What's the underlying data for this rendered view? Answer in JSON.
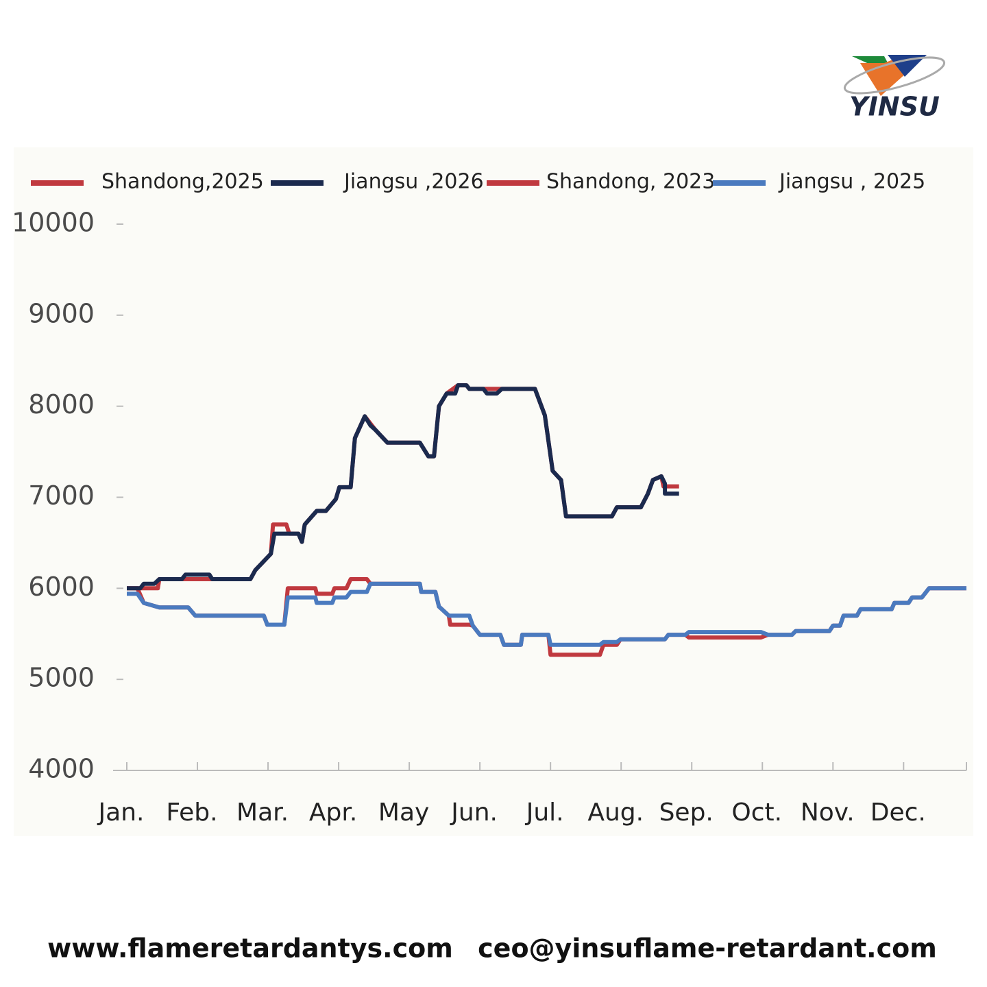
{
  "brand": "YINSU",
  "footer": {
    "website": "www.flameretardantys.com",
    "email": "ceo@yinsuflame-retardant.com"
  },
  "chart_data": {
    "type": "line",
    "xlim": [
      0,
      11.89
    ],
    "ylim": [
      4000,
      10000
    ],
    "yticks": [
      4000,
      5000,
      6000,
      7000,
      8000,
      9000,
      10000
    ],
    "xticks": [
      {
        "value": 0,
        "label": "Jan."
      },
      {
        "value": 1,
        "label": "Feb."
      },
      {
        "value": 2,
        "label": "Mar."
      },
      {
        "value": 3,
        "label": "Apr."
      },
      {
        "value": 4,
        "label": "May"
      },
      {
        "value": 5,
        "label": "Jun."
      },
      {
        "value": 6,
        "label": "Jul."
      },
      {
        "value": 7,
        "label": "Aug."
      },
      {
        "value": 8,
        "label": "Sep."
      },
      {
        "value": 9,
        "label": "Oct."
      },
      {
        "value": 10,
        "label": "Nov."
      },
      {
        "value": 11,
        "label": "Dec."
      }
    ],
    "legend": "top",
    "series": [
      {
        "name": "Shandong,2025",
        "color": "#c0393f",
        "x": [
          0,
          0.44,
          0.46,
          0.87,
          1.12,
          1.21,
          1.75,
          1.82,
          2.04,
          2.07,
          2.26,
          2.3,
          2.43,
          2.48,
          2.52,
          2.69,
          2.82,
          2.96,
          3.01,
          3.17,
          3.23,
          3.37,
          3.52,
          3.69,
          4.15,
          4.27,
          4.35,
          4.42,
          4.53,
          4.69,
          4.81,
          4.85,
          5.78,
          5.92,
          6.03,
          6.15,
          6.22,
          6.87,
          6.94,
          7.28,
          7.38,
          7.45,
          7.57,
          7.6,
          7.82
        ],
        "values": [
          6000,
          6000,
          6100,
          6100,
          6100,
          6100,
          6100,
          6200,
          6380,
          6700,
          6700,
          6600,
          6600,
          6510,
          6700,
          6850,
          6850,
          6980,
          7110,
          7110,
          7650,
          7890,
          7740,
          7600,
          7600,
          7450,
          7450,
          8000,
          8140,
          8230,
          8230,
          8190,
          8190,
          7900,
          7290,
          7190,
          6790,
          6790,
          6890,
          6890,
          7040,
          7190,
          7230,
          7120,
          7120
        ]
      },
      {
        "name": "Jiangsu ,2026",
        "color": "#1b2a4e",
        "x": [
          0,
          0.19,
          0.24,
          0.39,
          0.46,
          0.78,
          0.83,
          1.17,
          1.21,
          1.75,
          1.82,
          2.04,
          2.09,
          2.43,
          2.48,
          2.52,
          2.69,
          2.82,
          2.96,
          3.01,
          3.17,
          3.23,
          3.37,
          3.45,
          3.52,
          3.69,
          4.15,
          4.27,
          4.35,
          4.42,
          4.53,
          4.65,
          4.69,
          4.81,
          4.85,
          5.05,
          5.1,
          5.24,
          5.31,
          5.78,
          5.92,
          6.03,
          6.15,
          6.22,
          6.87,
          6.94,
          7.28,
          7.38,
          7.45,
          7.57,
          7.62,
          7.62,
          7.82
        ],
        "values": [
          6000,
          6000,
          6050,
          6050,
          6100,
          6100,
          6150,
          6150,
          6100,
          6100,
          6200,
          6380,
          6600,
          6600,
          6510,
          6700,
          6850,
          6850,
          6980,
          7110,
          7110,
          7650,
          7890,
          7790,
          7740,
          7600,
          7600,
          7450,
          7450,
          8000,
          8140,
          8140,
          8230,
          8230,
          8190,
          8190,
          8140,
          8140,
          8190,
          8190,
          7900,
          7290,
          7190,
          6790,
          6790,
          6890,
          6890,
          7040,
          7190,
          7230,
          7150,
          7040,
          7040
        ]
      },
      {
        "name": "Shandong, 2023",
        "color": "#c0393f",
        "x": [
          0,
          0.15,
          0.24,
          0.46,
          0.87,
          0.97,
          1.94,
          1.99,
          2.23,
          2.28,
          2.67,
          2.69,
          2.91,
          2.94,
          3.11,
          3.17,
          3.4,
          3.45,
          3.5,
          4.15,
          4.17,
          4.37,
          4.42,
          4.56,
          4.58,
          4.85,
          4.9,
          5.0,
          5.29,
          5.34,
          5.58,
          5.6,
          5.97,
          6.0,
          6.7,
          6.75,
          6.94,
          6.99,
          7.62,
          7.67,
          7.91,
          7.96,
          8.98,
          9.08,
          9.42,
          9.47,
          9.95,
          10.0,
          10.1,
          10.15,
          10.34,
          10.39,
          10.83,
          10.87,
          11.07,
          11.12,
          11.26,
          11.36,
          11.89
        ],
        "values": [
          6000,
          6000,
          5840,
          5790,
          5790,
          5700,
          5700,
          5600,
          5600,
          6000,
          6000,
          5940,
          5940,
          6000,
          6000,
          6100,
          6100,
          6050,
          6050,
          6050,
          5960,
          5960,
          5800,
          5700,
          5600,
          5600,
          5590,
          5490,
          5490,
          5380,
          5380,
          5490,
          5490,
          5270,
          5270,
          5380,
          5380,
          5440,
          5440,
          5490,
          5490,
          5460,
          5460,
          5490,
          5490,
          5530,
          5530,
          5590,
          5590,
          5700,
          5700,
          5770,
          5770,
          5840,
          5840,
          5900,
          5900,
          6000,
          6000
        ]
      },
      {
        "name": "Jiangsu , 2025",
        "color": "#4a7abf",
        "x": [
          0,
          0.15,
          0.24,
          0.46,
          0.87,
          0.97,
          1.94,
          1.99,
          2.23,
          2.28,
          2.67,
          2.69,
          2.91,
          2.94,
          3.11,
          3.17,
          3.4,
          3.45,
          4.15,
          4.17,
          4.37,
          4.42,
          4.56,
          4.85,
          4.9,
          5.0,
          5.29,
          5.34,
          5.58,
          5.6,
          5.97,
          6.0,
          6.7,
          6.75,
          6.94,
          6.99,
          7.62,
          7.67,
          7.91,
          7.96,
          8.98,
          9.08,
          9.42,
          9.47,
          9.95,
          10.0,
          10.1,
          10.15,
          10.34,
          10.39,
          10.83,
          10.87,
          11.07,
          11.12,
          11.26,
          11.36,
          11.89
        ],
        "values": [
          5940,
          5940,
          5840,
          5790,
          5790,
          5700,
          5700,
          5600,
          5600,
          5900,
          5900,
          5840,
          5840,
          5900,
          5900,
          5960,
          5960,
          6050,
          6050,
          5960,
          5960,
          5800,
          5700,
          5700,
          5590,
          5490,
          5490,
          5380,
          5380,
          5490,
          5490,
          5380,
          5380,
          5410,
          5410,
          5440,
          5440,
          5490,
          5490,
          5520,
          5520,
          5490,
          5490,
          5530,
          5530,
          5590,
          5590,
          5700,
          5700,
          5770,
          5770,
          5840,
          5840,
          5900,
          5900,
          6000,
          6000
        ]
      }
    ]
  }
}
